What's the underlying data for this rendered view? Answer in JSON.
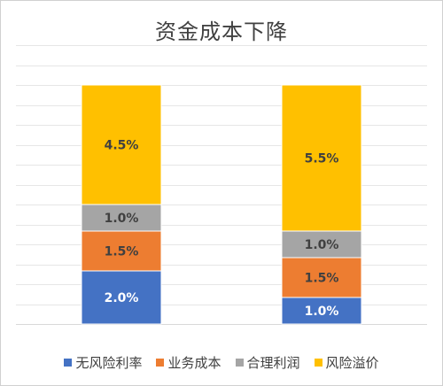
{
  "chart_data": {
    "type": "bar",
    "stacked": true,
    "title": "资金成本下降",
    "xlabel": "",
    "ylabel": "",
    "ylim": [
      0,
      10.5
    ],
    "grid": true,
    "legend_position": "bottom",
    "categories": [
      "",
      ""
    ],
    "series": [
      {
        "name": "无风险利率",
        "color": "#4472C4",
        "values": [
          2.0,
          1.0
        ],
        "labels": [
          "2.0%",
          "1.0%"
        ]
      },
      {
        "name": "业务成本",
        "color": "#ED7D31",
        "values": [
          1.5,
          1.5
        ],
        "labels": [
          "1.5%",
          "1.5%"
        ]
      },
      {
        "name": "合理利润",
        "color": "#A5A5A5",
        "values": [
          1.0,
          1.0
        ],
        "labels": [
          "1.0%",
          "1.0%"
        ]
      },
      {
        "name": "风险溢价",
        "color": "#FFC000",
        "values": [
          4.5,
          5.5
        ],
        "labels": [
          "4.5%",
          "5.5%"
        ]
      }
    ]
  }
}
